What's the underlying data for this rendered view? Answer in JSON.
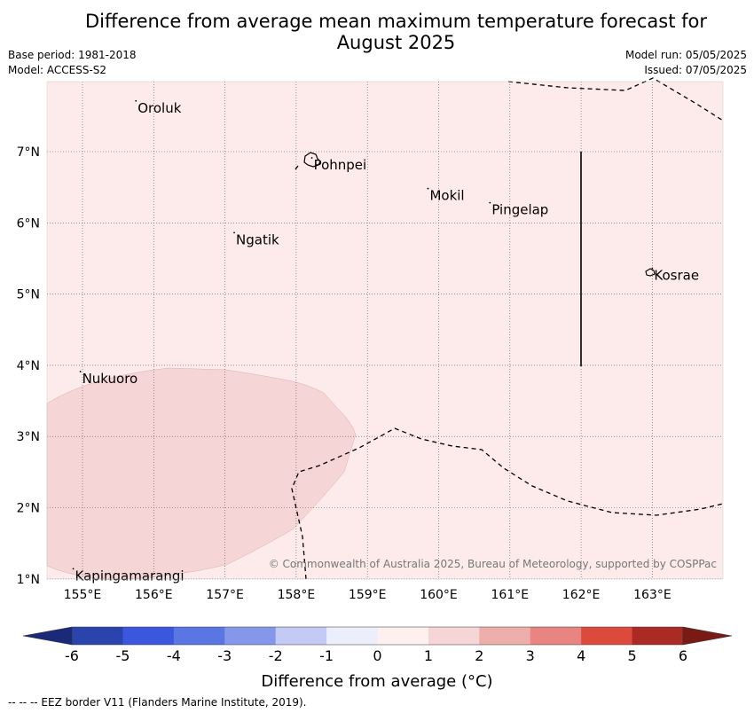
{
  "title_line1": "Difference from average mean maximum temperature forecast for",
  "title_line2": "August 2025",
  "meta_left": {
    "base_period": "Base period: 1981-2018",
    "model": "Model: ACCESS-S2"
  },
  "meta_right": {
    "model_run": "Model run: 05/05/2025",
    "issued": "Issued: 07/05/2025"
  },
  "map": {
    "background_color": "#fcebea",
    "anomaly_patch_color": "#f5d5d6",
    "lon_labels": [
      "155°E",
      "156°E",
      "157°E",
      "158°E",
      "159°E",
      "160°E",
      "161°E",
      "162°E",
      "163°E"
    ],
    "lat_labels": [
      "7°N",
      "6°N",
      "5°N",
      "4°N",
      "3°N",
      "2°N",
      "1°N"
    ],
    "places": [
      {
        "name": "Oroluk",
        "lon": 155.75,
        "lat": 7.65
      },
      {
        "name": "Pohnpei",
        "lon": 158.22,
        "lat": 6.85
      },
      {
        "name": "Mokil",
        "lon": 159.85,
        "lat": 6.42
      },
      {
        "name": "Pingelap",
        "lon": 160.72,
        "lat": 6.22
      },
      {
        "name": "Ngatik",
        "lon": 157.13,
        "lat": 5.8
      },
      {
        "name": "Kosrae",
        "lon": 163.0,
        "lat": 5.3
      },
      {
        "name": "Nukuoro",
        "lon": 154.97,
        "lat": 3.85
      },
      {
        "name": "Kapingamarangi",
        "lon": 154.87,
        "lat": 1.08
      }
    ],
    "copyright": "© Commonwealth of Australia 2025, Bureau of Meteorology, supported by COSPPac"
  },
  "colorbar": {
    "label": "Difference from average (°C)",
    "ticks": [
      "-6",
      "-5",
      "-4",
      "-3",
      "-2",
      "-1",
      "0",
      "1",
      "2",
      "3",
      "4",
      "5",
      "6"
    ],
    "colors": [
      "#2b44ad",
      "#3b57de",
      "#5a76e3",
      "#8497ea",
      "#c3caf5",
      "#eceefc",
      "#fdf0ef",
      "#f5d5d6",
      "#eeaeaa",
      "#e88580",
      "#dc4a3b",
      "#ab2a23"
    ],
    "under_color": "#1a2a78",
    "over_color": "#7a1a14"
  },
  "footer": "--  --  -- EEZ border V11 (Flanders Marine Institute, 2019)."
}
